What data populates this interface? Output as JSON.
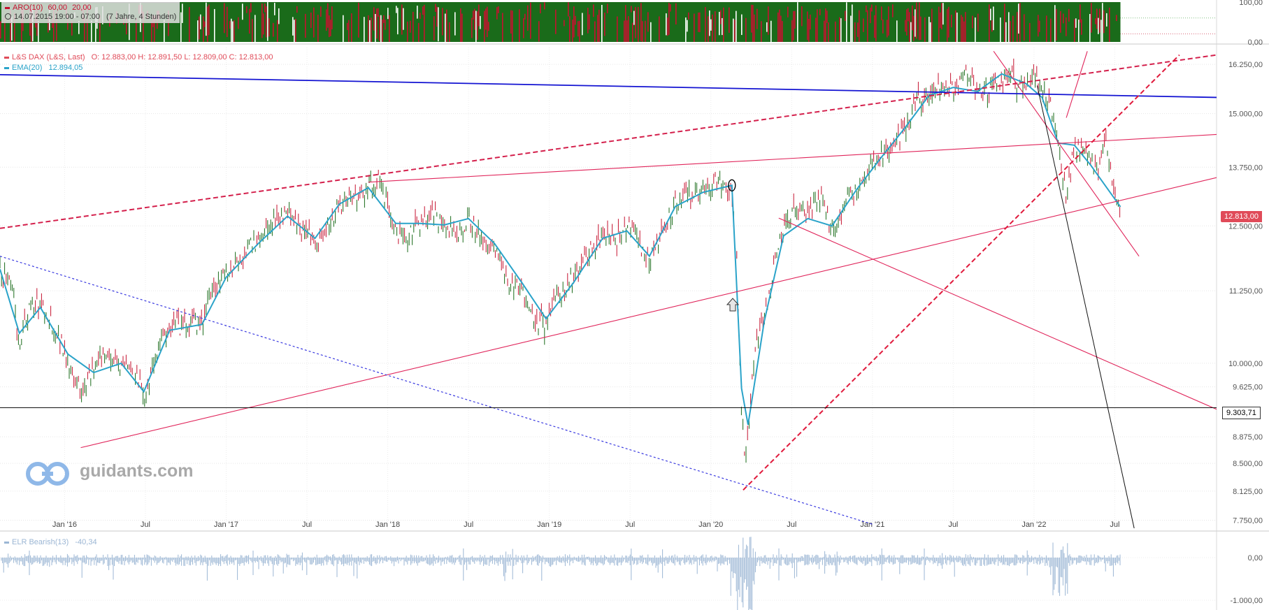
{
  "header": {
    "aro_label": "ARO(10)",
    "aro_v1": "60,00",
    "aro_v2": "20,00",
    "timeframe": "14.07.2015 19:00 - 07:00",
    "timeframe_extra": "(7 Jahre, 4 Stunden)"
  },
  "main_legend": {
    "instrument": "L&S DAX (L&S, Last)",
    "ohlc": "O: 12.883,00   H: 12.891,50   L: 12.809,00   C: 12.813,00",
    "ema_label": "EMA(20)",
    "ema_value": "12.894,05"
  },
  "bottom_legend": {
    "label": "ELR Bearish(13)",
    "value": "-40,34"
  },
  "price_tags": {
    "last": "12.813,00",
    "line": "9.303,71"
  },
  "branding": {
    "text": "guidants.com",
    "icon": "guidants-logo-icon"
  },
  "colors": {
    "candle_up": "#1a6b1a",
    "candle_down": "#c4122f",
    "ema": "#2aa3c9",
    "trend_red": "#e0245a",
    "trend_blue": "#1414d2",
    "elr": "#9bb6d4",
    "last_tag": "#e04b59"
  },
  "chart_data": {
    "type": "line",
    "title": "L&S DAX (L&S, Last)",
    "x_tick_labels": [
      "Jan '16",
      "Jul",
      "Jan '17",
      "Jul",
      "Jan '18",
      "Jul",
      "Jan '19",
      "Jul",
      "Jan '20",
      "Jul",
      "Jan '21",
      "Jul",
      "Jan '22",
      "Jul"
    ],
    "x_ticks": [
      2016.0,
      2016.5,
      2017.0,
      2017.5,
      2018.0,
      2018.5,
      2019.0,
      2019.5,
      2020.0,
      2020.5,
      2021.0,
      2021.5,
      2022.0,
      2022.5
    ],
    "y_scale": "log",
    "y_ticks": [
      7750,
      8125,
      8500,
      8875,
      9625,
      10000,
      11250,
      12500,
      13750,
      15000,
      16250
    ],
    "y_tick_labels": [
      "7.750,00",
      "8.125,00",
      "8.500,00",
      "8.875,00",
      "9.625,00",
      "10.000,00",
      "11.250,00",
      "12.500,00",
      "13.750,00",
      "15.000,00",
      "16.250,00"
    ],
    "ylim": [
      7650,
      16700
    ],
    "xlim": [
      2015.6,
      2023.13
    ],
    "series": [
      {
        "name": "L&S DAX (L&S, Last)",
        "x": [
          2015.6,
          2015.68,
          2015.72,
          2015.78,
          2015.85,
          2015.92,
          2016.02,
          2016.1,
          2016.18,
          2016.27,
          2016.35,
          2016.45,
          2016.49,
          2016.55,
          2016.65,
          2016.75,
          2016.85,
          2016.92,
          2017.0,
          2017.1,
          2017.2,
          2017.3,
          2017.38,
          2017.45,
          2017.55,
          2017.62,
          2017.7,
          2017.8,
          2017.88,
          2017.96,
          2018.05,
          2018.1,
          2018.2,
          2018.27,
          2018.35,
          2018.42,
          2018.5,
          2018.58,
          2018.66,
          2018.75,
          2018.83,
          2018.92,
          2018.98,
          2019.05,
          2019.15,
          2019.25,
          2019.33,
          2019.42,
          2019.48,
          2019.55,
          2019.62,
          2019.7,
          2019.78,
          2019.85,
          2019.95,
          2020.05,
          2020.13,
          2020.16,
          2020.19,
          2020.21,
          2020.23,
          2020.27,
          2020.33,
          2020.4,
          2020.45,
          2020.52,
          2020.6,
          2020.68,
          2020.75,
          2020.8,
          2020.85,
          2020.9,
          2020.98,
          2021.05,
          2021.12,
          2021.2,
          2021.28,
          2021.35,
          2021.42,
          2021.5,
          2021.58,
          2021.65,
          2021.72,
          2021.8,
          2021.85,
          2021.9,
          2021.95,
          2022.0,
          2022.05,
          2022.1,
          2022.15,
          2022.2,
          2022.25,
          2022.3,
          2022.35,
          2022.4,
          2022.45,
          2022.49,
          2022.51,
          2022.535
        ],
        "values": [
          11700,
          11200,
          10300,
          10950,
          11000,
          10700,
          10100,
          9500,
          9900,
          10200,
          10000,
          9800,
          9400,
          10050,
          10650,
          10600,
          10700,
          11300,
          11600,
          11900,
          12250,
          12700,
          12750,
          12500,
          12200,
          12450,
          13000,
          13100,
          13350,
          13400,
          12400,
          12150,
          12600,
          12800,
          12500,
          12300,
          12700,
          12200,
          12100,
          11350,
          11300,
          10700,
          10650,
          11150,
          11500,
          12000,
          12300,
          12200,
          12450,
          12250,
          11800,
          12350,
          12950,
          13150,
          13250,
          13450,
          13200,
          11800,
          9300,
          8500,
          9000,
          10200,
          10800,
          11900,
          12400,
          12800,
          12700,
          13100,
          12500,
          12600,
          13150,
          13300,
          13700,
          14000,
          14100,
          14700,
          15300,
          15500,
          15600,
          15700,
          15900,
          15650,
          15500,
          15800,
          16100,
          15600,
          15800,
          15900,
          15600,
          15300,
          14200,
          13100,
          14300,
          14100,
          14000,
          13700,
          14400,
          13200,
          13000,
          12813
        ]
      },
      {
        "name": "EMA(20)",
        "x": [
          2015.6,
          2015.72,
          2015.85,
          2016.02,
          2016.18,
          2016.35,
          2016.49,
          2016.65,
          2016.85,
          2017.0,
          2017.2,
          2017.38,
          2017.55,
          2017.7,
          2017.88,
          2018.05,
          2018.2,
          2018.35,
          2018.5,
          2018.66,
          2018.83,
          2018.98,
          2019.15,
          2019.33,
          2019.48,
          2019.62,
          2019.78,
          2019.95,
          2020.13,
          2020.19,
          2020.23,
          2020.33,
          2020.45,
          2020.6,
          2020.75,
          2020.9,
          2021.05,
          2021.2,
          2021.35,
          2021.5,
          2021.65,
          2021.8,
          2021.95,
          2022.05,
          2022.15,
          2022.25,
          2022.35,
          2022.45,
          2022.535
        ],
        "values": [
          11650,
          10500,
          10950,
          10150,
          9850,
          10000,
          9550,
          10550,
          10650,
          11500,
          12150,
          12700,
          12250,
          12950,
          13300,
          12550,
          12550,
          12520,
          12650,
          12150,
          11400,
          10750,
          11400,
          12250,
          12400,
          11900,
          12900,
          13200,
          13350,
          9600,
          9050,
          10700,
          12300,
          12650,
          12500,
          13250,
          13950,
          14650,
          15450,
          15650,
          15550,
          16000,
          15750,
          15400,
          14300,
          14250,
          13800,
          13300,
          12894
        ]
      }
    ],
    "trendlines": [
      {
        "name": "blue-solid",
        "points": [
          [
            2015.6,
            15980
          ],
          [
            2023.13,
            15400
          ]
        ]
      },
      {
        "name": "red-dashed-upper",
        "points": [
          [
            2015.6,
            12450
          ],
          [
            2023.13,
            16500
          ]
        ]
      },
      {
        "name": "red-upper",
        "points": [
          [
            2017.88,
            13420
          ],
          [
            2023.13,
            14500
          ]
        ]
      },
      {
        "name": "red-lower",
        "points": [
          [
            2016.1,
            8720
          ],
          [
            2023.13,
            13520
          ]
        ]
      },
      {
        "name": "red-dashed-steep",
        "points": [
          [
            2020.2,
            8140
          ],
          [
            2022.9,
            16500
          ]
        ]
      },
      {
        "name": "red-falling-long",
        "points": [
          [
            2020.42,
            12660
          ],
          [
            2023.13,
            9280
          ]
        ]
      },
      {
        "name": "red-falling-short",
        "points": [
          [
            2021.75,
            16600
          ],
          [
            2022.65,
            11900
          ]
        ]
      },
      {
        "name": "red-spike",
        "points": [
          [
            2022.2,
            14900
          ],
          [
            2022.33,
            16600
          ]
        ]
      },
      {
        "name": "black-falling",
        "points": [
          [
            2022.02,
            15700
          ],
          [
            2022.62,
            7650
          ]
        ]
      },
      {
        "name": "blue-dashed",
        "points": [
          [
            2015.6,
            11900
          ],
          [
            2021.0,
            7700
          ]
        ]
      },
      {
        "name": "horizontal-9303",
        "points": [
          [
            2015.6,
            9303.71
          ],
          [
            2023.13,
            9303.71
          ]
        ]
      }
    ],
    "aro_panel": {
      "name": "ARO(10)",
      "y_ticks": [
        0,
        100
      ],
      "y_tick_labels": [
        "0,00",
        "100,00"
      ],
      "levels": [
        60,
        20
      ]
    },
    "elr_panel": {
      "name": "ELR Bearish(13)",
      "last": -40.34,
      "y_ticks": [
        0,
        -1000
      ],
      "y_tick_labels": [
        "0,00",
        "-1.000,00"
      ]
    }
  }
}
